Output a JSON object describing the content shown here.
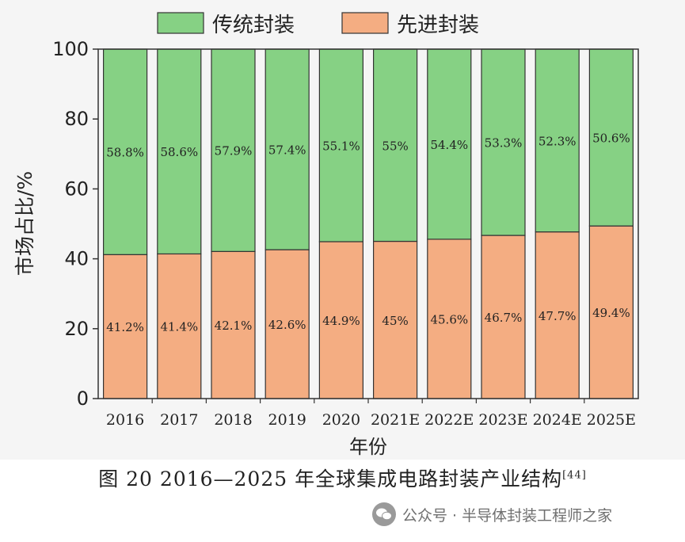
{
  "chart_data": {
    "type": "bar",
    "stacked": true,
    "categories": [
      "2016",
      "2017",
      "2018",
      "2019",
      "2020",
      "2021E",
      "2022E",
      "2023E",
      "2024E",
      "2025E"
    ],
    "series": [
      {
        "name": "先进封装",
        "color": "#f4ad82",
        "values": [
          41.2,
          41.4,
          42.1,
          42.6,
          44.9,
          45,
          45.6,
          46.7,
          47.7,
          49.4
        ],
        "labels": [
          "41.2%",
          "41.4%",
          "42.1%",
          "42.6%",
          "44.9%",
          "45%",
          "45.6%",
          "46.7%",
          "47.7%",
          "49.4%"
        ]
      },
      {
        "name": "传统封装",
        "color": "#86d184",
        "values": [
          58.8,
          58.6,
          57.9,
          57.4,
          55.1,
          55,
          54.4,
          53.3,
          52.3,
          50.6
        ],
        "labels": [
          "58.8%",
          "58.6%",
          "57.9%",
          "57.4%",
          "55.1%",
          "55%",
          "54.4%",
          "53.3%",
          "52.3%",
          "50.6%"
        ]
      }
    ],
    "legend_order": [
      "传统封装",
      "先进封装"
    ],
    "legend_position": "top",
    "xlabel": "年份",
    "ylabel": "市场占比/%",
    "ylim": [
      0,
      100
    ],
    "yticks": [
      0,
      20,
      40,
      60,
      80,
      100
    ],
    "grid": false
  },
  "caption": {
    "text": "图 20  2016—2025 年全球集成电路封装产业结构",
    "ref": "[44]"
  },
  "watermark": {
    "text": "公众号 · 半导体封装工程师之家",
    "icon": "wechat-icon"
  }
}
